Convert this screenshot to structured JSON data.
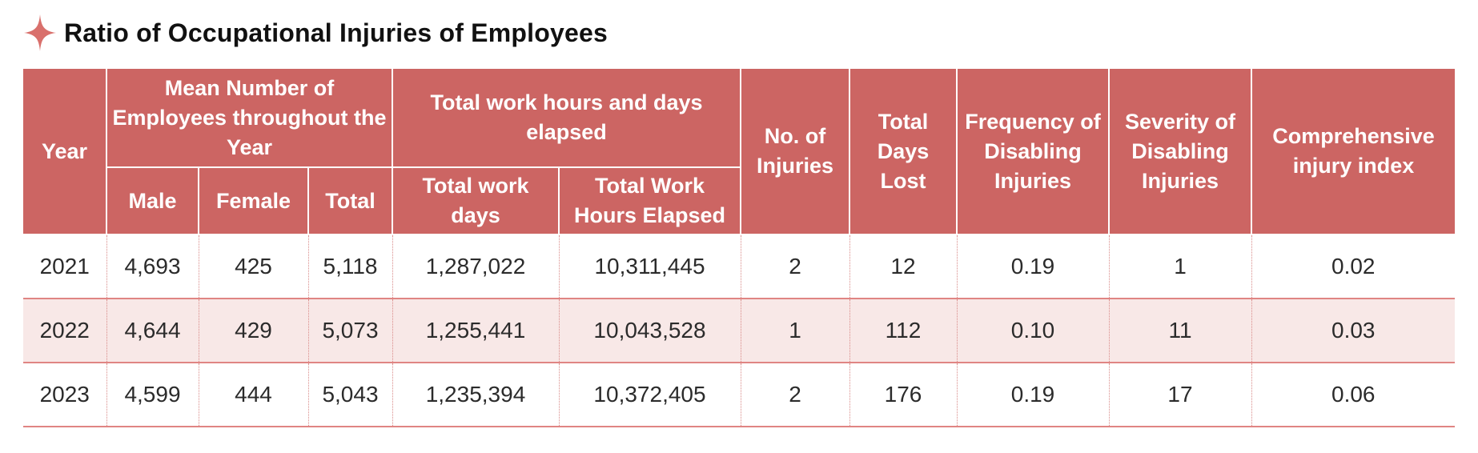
{
  "title": "Ratio of Occupational Injuries of Employees",
  "colors": {
    "accent": "#cc6563",
    "header_bg": "#cc6563",
    "alt_row_bg": "#f8e8e7",
    "star": "#d9706c"
  },
  "icons": {
    "title_marker": "four-point-star-icon"
  },
  "headers": {
    "year": "Year",
    "mean_employees": "Mean Number of Employees throughout the Year",
    "work_hours_group": "Total work hours and days elapsed",
    "no_injuries": "No. of Injuries",
    "days_lost": "Total Days Lost",
    "frequency": "Frequency of Disabling Injuries",
    "severity": "Severity of Disabling Injuries",
    "comprehensive": "Comprehensive injury index",
    "male": "Male",
    "female": "Female",
    "total": "Total",
    "work_days": "Total work days",
    "work_hours": "Total Work Hours Elapsed"
  },
  "rows": [
    {
      "year": "2021",
      "male": "4,693",
      "female": "425",
      "total": "5,118",
      "work_days": "1,287,022",
      "work_hours": "10,311,445",
      "injuries": "2",
      "days_lost": "12",
      "frequency": "0.19",
      "severity": "1",
      "index": "0.02"
    },
    {
      "year": "2022",
      "male": "4,644",
      "female": "429",
      "total": "5,073",
      "work_days": "1,255,441",
      "work_hours": "10,043,528",
      "injuries": "1",
      "days_lost": "112",
      "frequency": "0.10",
      "severity": "11",
      "index": "0.03"
    },
    {
      "year": "2023",
      "male": "4,599",
      "female": "444",
      "total": "5,043",
      "work_days": "1,235,394",
      "work_hours": "10,372,405",
      "injuries": "2",
      "days_lost": "176",
      "frequency": "0.19",
      "severity": "17",
      "index": "0.06"
    }
  ]
}
